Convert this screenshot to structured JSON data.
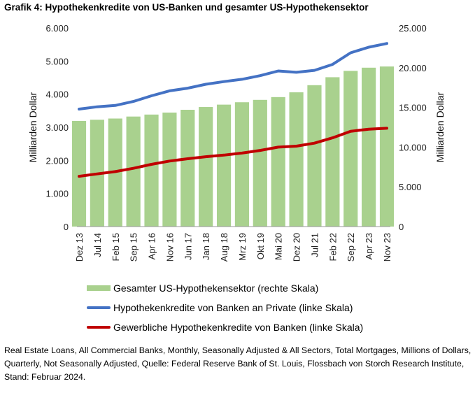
{
  "title": "Grafik 4: Hypothekenkredite von US-Banken und gesamter US-Hypothekensektor",
  "chart_data": {
    "type": "bar+line",
    "x_tick_labels": [
      "Dez 13",
      "Jul 14",
      "Feb 15",
      "Sep 15",
      "Apr 16",
      "Nov 16",
      "Jun 17",
      "Jan 18",
      "Aug 18",
      "Mrz 19",
      "Okt 19",
      "Mai 20",
      "Dez 20",
      "Jul 21",
      "Feb 22",
      "Sep 22",
      "Apr 23",
      "Nov 23"
    ],
    "y_left": {
      "label": "Milliarden Dollar",
      "ylim": [
        0,
        6000
      ],
      "ticks": [
        "0",
        "1.000",
        "2.000",
        "3.000",
        "4.000",
        "5.000",
        "6.000"
      ]
    },
    "y_right": {
      "label": "Milliarden Dollar",
      "ylim": [
        0,
        25000
      ],
      "ticks": [
        "0",
        "5.000",
        "10.000",
        "15.000",
        "20.000",
        "25.000"
      ]
    },
    "series": [
      {
        "name": "Gesamter US-Hypothekensektor (rechte Skala)",
        "kind": "bar",
        "axis": "right",
        "color": "#a9d18e",
        "x": [
          "Dez 13",
          "Jul 14",
          "Feb 15",
          "Sep 15",
          "Apr 16",
          "Nov 16",
          "Jun 17",
          "Jan 18",
          "Aug 18",
          "Mrz 19",
          "Okt 19",
          "Mai 20",
          "Dez 20",
          "Jul 21",
          "Feb 22",
          "Sep 22",
          "Apr 23",
          "Nov 23"
        ],
        "values": [
          13300,
          13450,
          13600,
          13850,
          14100,
          14350,
          14700,
          15050,
          15350,
          15650,
          15950,
          16300,
          16900,
          17800,
          18800,
          19600,
          20000,
          20150
        ]
      },
      {
        "name": "Hypothekenkredite von Banken an Private (linke Skala)",
        "kind": "line",
        "axis": "left",
        "color": "#4472c4",
        "x": [
          "Dez 13",
          "Jul 14",
          "Feb 15",
          "Sep 15",
          "Apr 16",
          "Nov 16",
          "Jun 17",
          "Jan 18",
          "Aug 18",
          "Mrz 19",
          "Okt 19",
          "Mai 20",
          "Dez 20",
          "Jul 21",
          "Feb 22",
          "Sep 22",
          "Apr 23",
          "Nov 23"
        ],
        "values": [
          3550,
          3620,
          3660,
          3780,
          3950,
          4100,
          4180,
          4300,
          4380,
          4450,
          4560,
          4700,
          4660,
          4720,
          4900,
          5250,
          5420,
          5530
        ]
      },
      {
        "name": "Gewerbliche Hypothekenkredite von Banken (linke Skala)",
        "kind": "line",
        "axis": "left",
        "color": "#c00000",
        "x": [
          "Dez 13",
          "Jul 14",
          "Feb 15",
          "Sep 15",
          "Apr 16",
          "Nov 16",
          "Jun 17",
          "Jan 18",
          "Aug 18",
          "Mrz 19",
          "Okt 19",
          "Mai 20",
          "Dez 20",
          "Jul 21",
          "Feb 22",
          "Sep 22",
          "Apr 23",
          "Nov 23"
        ],
        "values": [
          1520,
          1590,
          1660,
          1760,
          1880,
          1980,
          2050,
          2110,
          2160,
          2220,
          2300,
          2400,
          2430,
          2520,
          2680,
          2880,
          2940,
          2970
        ]
      }
    ]
  },
  "source": "Real Estate Loans, All Commercial Banks, Monthly, Seasonally Adjusted & All Sectors, Total Mortgages, Millions of Dollars, Quarterly, Not Seasonally Adjusted, Quelle: Federal Reserve Bank of St. Louis, Flossbach von Storch Research Institute, Stand: Februar 2024."
}
